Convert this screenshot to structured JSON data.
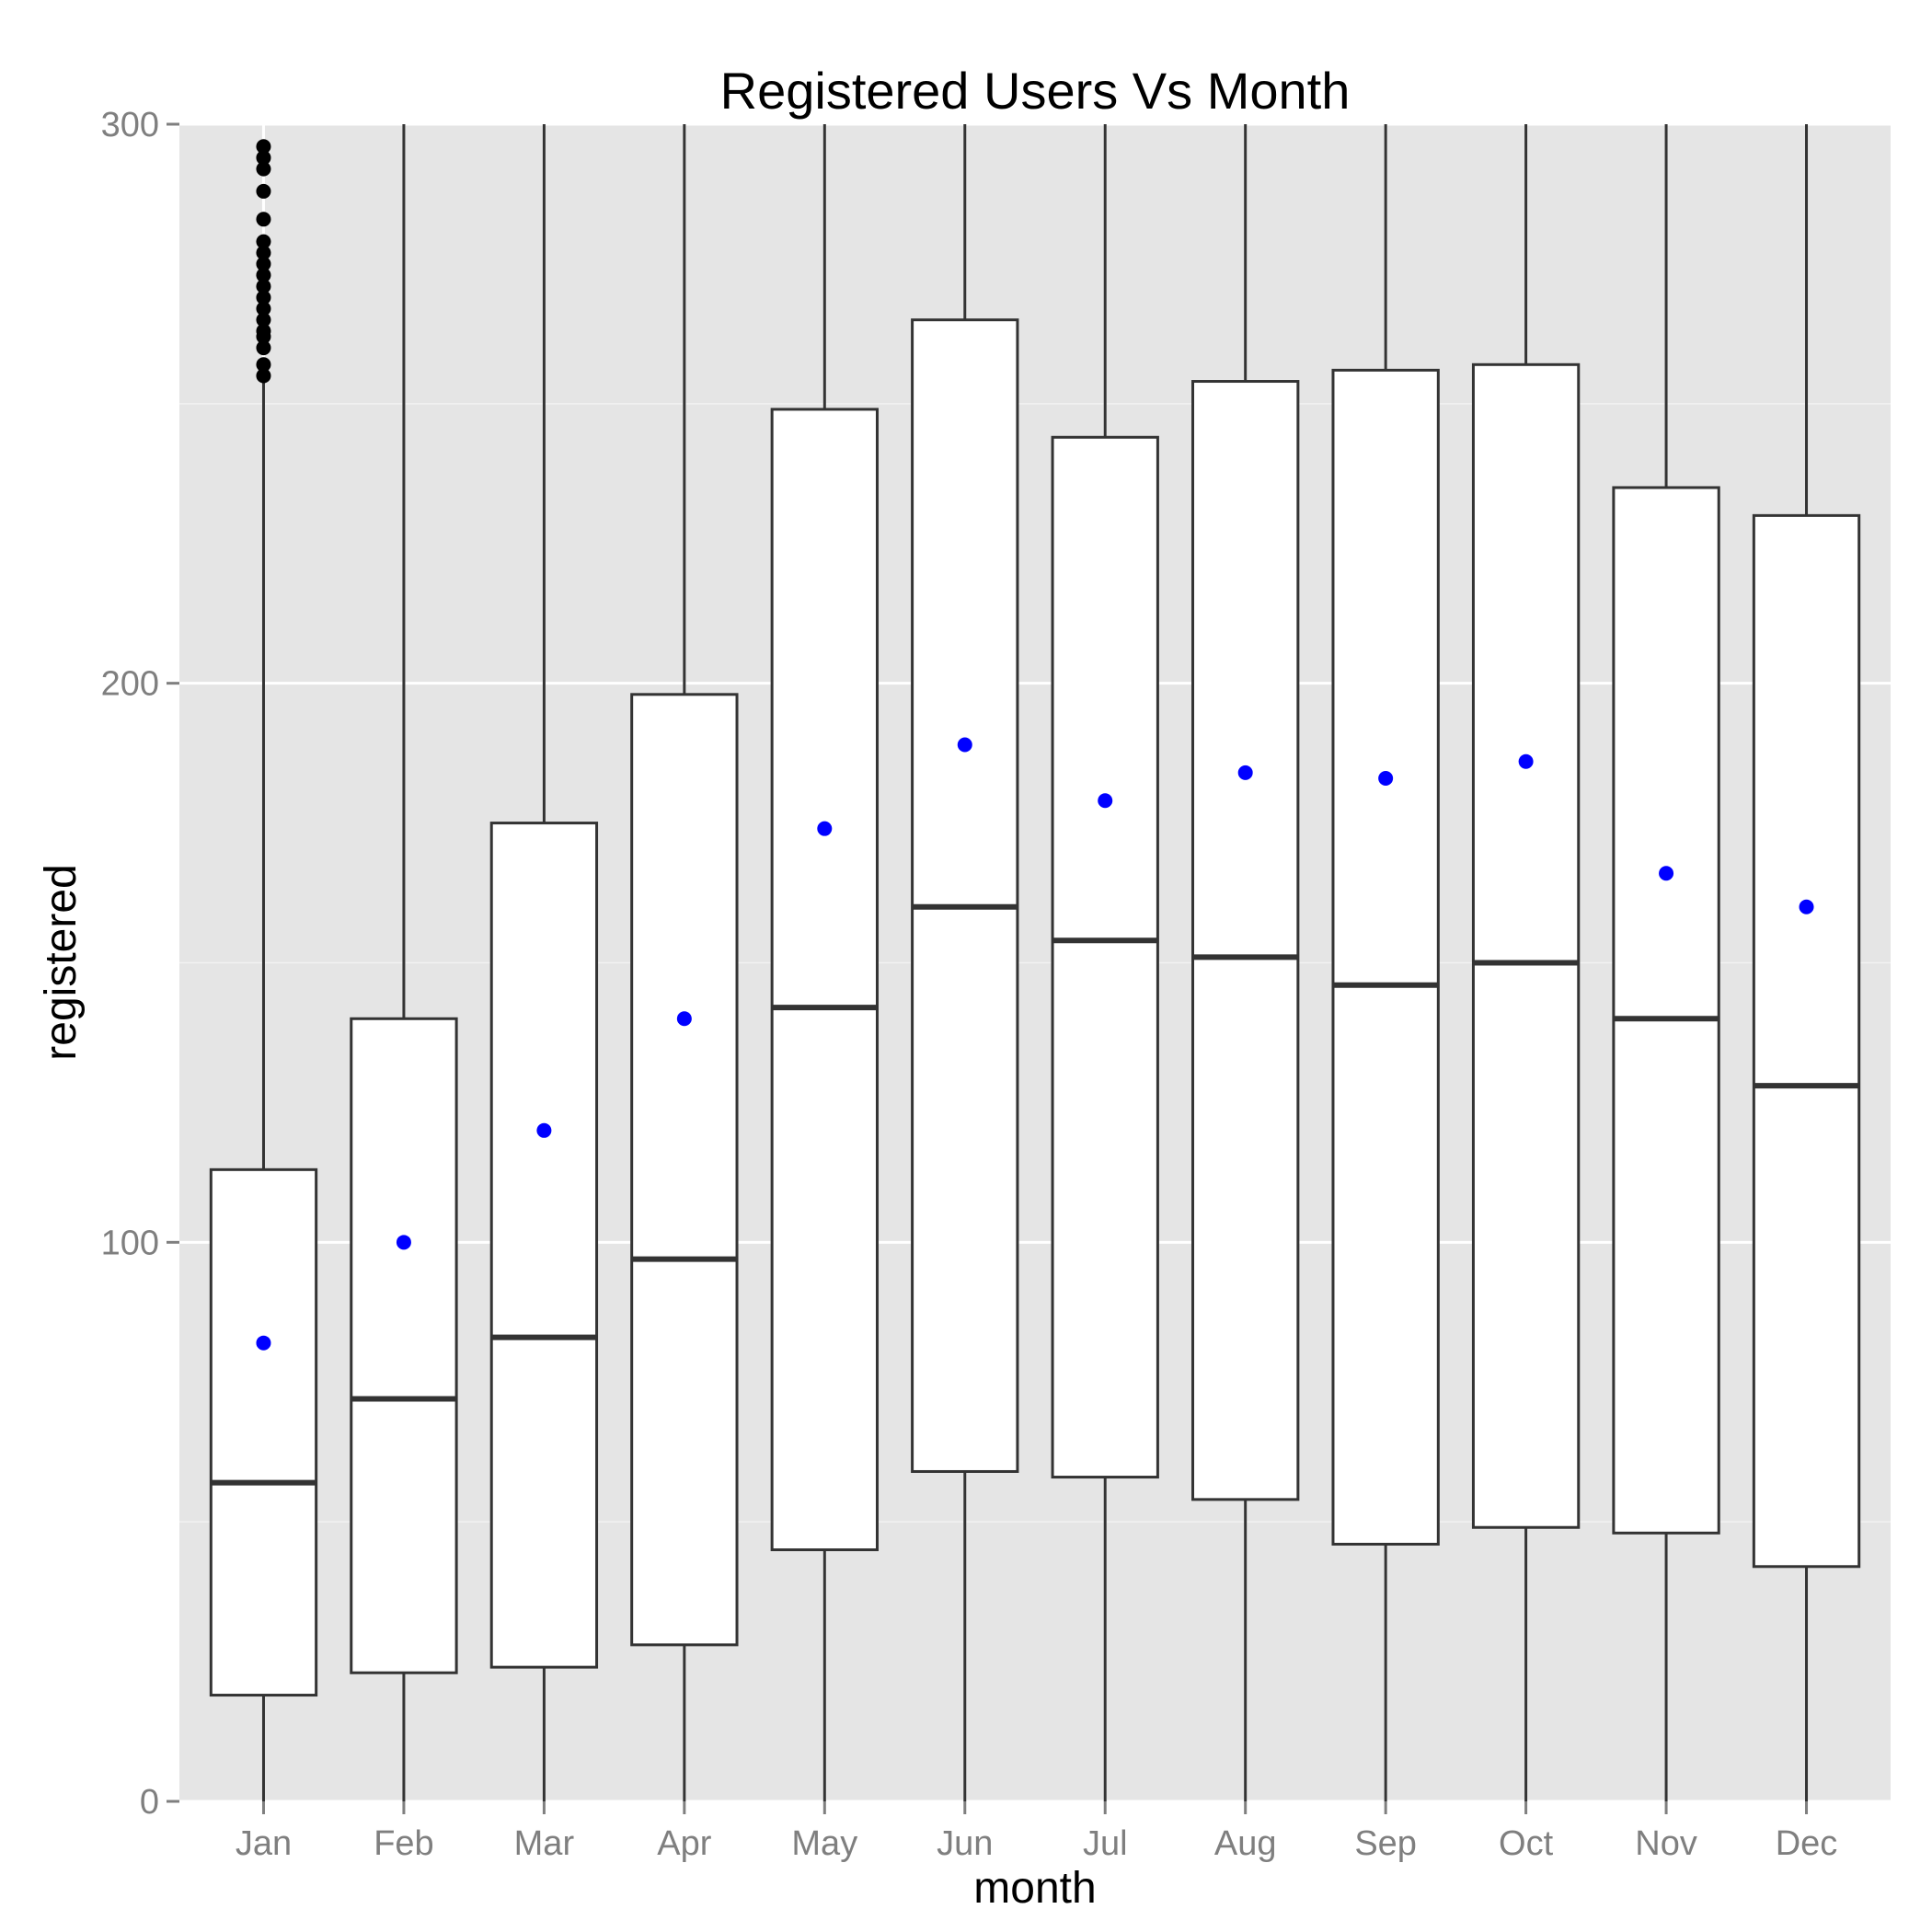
{
  "chart_data": {
    "type": "boxplot",
    "title": "Registered Users Vs Month",
    "xlabel": "month",
    "ylabel": "registered",
    "categories": [
      "Jan",
      "Feb",
      "Mar",
      "Apr",
      "May",
      "Jun",
      "Jul",
      "Aug",
      "Sep",
      "Oct",
      "Nov",
      "Dec"
    ],
    "ylim": [
      0,
      300
    ],
    "y_ticks": [
      0,
      100,
      200,
      300
    ],
    "y_tick_labels": [
      "0",
      "100",
      "200",
      "300"
    ],
    "grid": true,
    "boxes": [
      {
        "q1": 19,
        "median": 57,
        "q3": 113,
        "whisker_low": 0,
        "whisker_high": 255,
        "mean": 82,
        "outliers": [
          255,
          257,
          260,
          262,
          263,
          265,
          267,
          269,
          271,
          273,
          275,
          277,
          279,
          283,
          288,
          292,
          294,
          296
        ]
      },
      {
        "q1": 23,
        "median": 72,
        "q3": 140,
        "whisker_low": 0,
        "whisker_high": 300,
        "mean": 100,
        "outliers": []
      },
      {
        "q1": 24,
        "median": 83,
        "q3": 175,
        "whisker_low": 0,
        "whisker_high": 300,
        "mean": 120,
        "outliers": []
      },
      {
        "q1": 28,
        "median": 97,
        "q3": 198,
        "whisker_low": 0,
        "whisker_high": 300,
        "mean": 140,
        "outliers": []
      },
      {
        "q1": 45,
        "median": 142,
        "q3": 249,
        "whisker_low": 0,
        "whisker_high": 300,
        "mean": 174,
        "outliers": []
      },
      {
        "q1": 59,
        "median": 160,
        "q3": 265,
        "whisker_low": 0,
        "whisker_high": 300,
        "mean": 189,
        "outliers": []
      },
      {
        "q1": 58,
        "median": 154,
        "q3": 244,
        "whisker_low": 0,
        "whisker_high": 300,
        "mean": 179,
        "outliers": []
      },
      {
        "q1": 54,
        "median": 151,
        "q3": 254,
        "whisker_low": 0,
        "whisker_high": 300,
        "mean": 184,
        "outliers": []
      },
      {
        "q1": 46,
        "median": 146,
        "q3": 256,
        "whisker_low": 0,
        "whisker_high": 300,
        "mean": 183,
        "outliers": []
      },
      {
        "q1": 49,
        "median": 150,
        "q3": 257,
        "whisker_low": 0,
        "whisker_high": 300,
        "mean": 186,
        "outliers": []
      },
      {
        "q1": 48,
        "median": 140,
        "q3": 235,
        "whisker_low": 0,
        "whisker_high": 300,
        "mean": 166,
        "outliers": []
      },
      {
        "q1": 42,
        "median": 128,
        "q3": 230,
        "whisker_low": 0,
        "whisker_high": 300,
        "mean": 160,
        "outliers": []
      }
    ],
    "colors": {
      "panel": "#e5e5e5",
      "grid": "#ffffff",
      "box_fill": "#ffffff",
      "box_line": "#333333",
      "mean": "#0000ff",
      "outlier": "#000000",
      "tick_text": "#7f7f7f"
    }
  }
}
